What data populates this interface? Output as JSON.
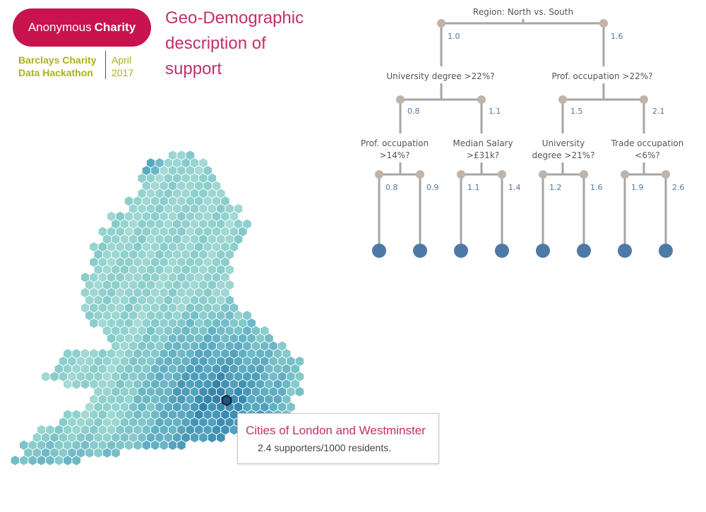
{
  "logo": {
    "name_regular": "Anonymous",
    "name_bold": "Charity",
    "hackathon_line1": "Barclays Charity",
    "hackathon_line2": "Data Hackathon",
    "date_line1": "April",
    "date_line2": "2017"
  },
  "title": {
    "line1": "Geo-Demographic",
    "line2": "description of",
    "line3": "support"
  },
  "colors": {
    "brand": "#c8134f",
    "accent": "#a8b21a",
    "title": "#c0306a",
    "tree_line": "#a6a6a6",
    "tree_joint": "#bfb3aa",
    "tree_value": "#4e79a7",
    "tree_leaf": "#4e79a7",
    "hex_low": "#b9e3dd",
    "hex_high": "#1a4a7a"
  },
  "tree": {
    "root": {
      "label": "Region: North vs. South",
      "left": "1.0",
      "right": "1.6"
    },
    "level2": [
      {
        "label": "University degree >22%?",
        "left": "0.8",
        "right": "1.1"
      },
      {
        "label": "Prof. occupation >22%?",
        "left": "1.5",
        "right": "2.1"
      }
    ],
    "level3": [
      {
        "label_line1": "Prof. occupation",
        "label_line2": ">14%?",
        "left": "0.8",
        "right": "0.9"
      },
      {
        "label_line1": "Median Salary",
        "label_line2": ">£31k?",
        "left": "1.1",
        "right": "1.4"
      },
      {
        "label_line1": "University",
        "label_line2": "degree >21%?",
        "left": "1.2",
        "right": "1.6"
      },
      {
        "label_line1": "Trade occupation",
        "label_line2": "<6%?",
        "left": "1.9",
        "right": "2.6"
      }
    ]
  },
  "tooltip": {
    "title": "Cities of London and Westminster",
    "body": "2.4 supporters/1000 residents."
  }
}
